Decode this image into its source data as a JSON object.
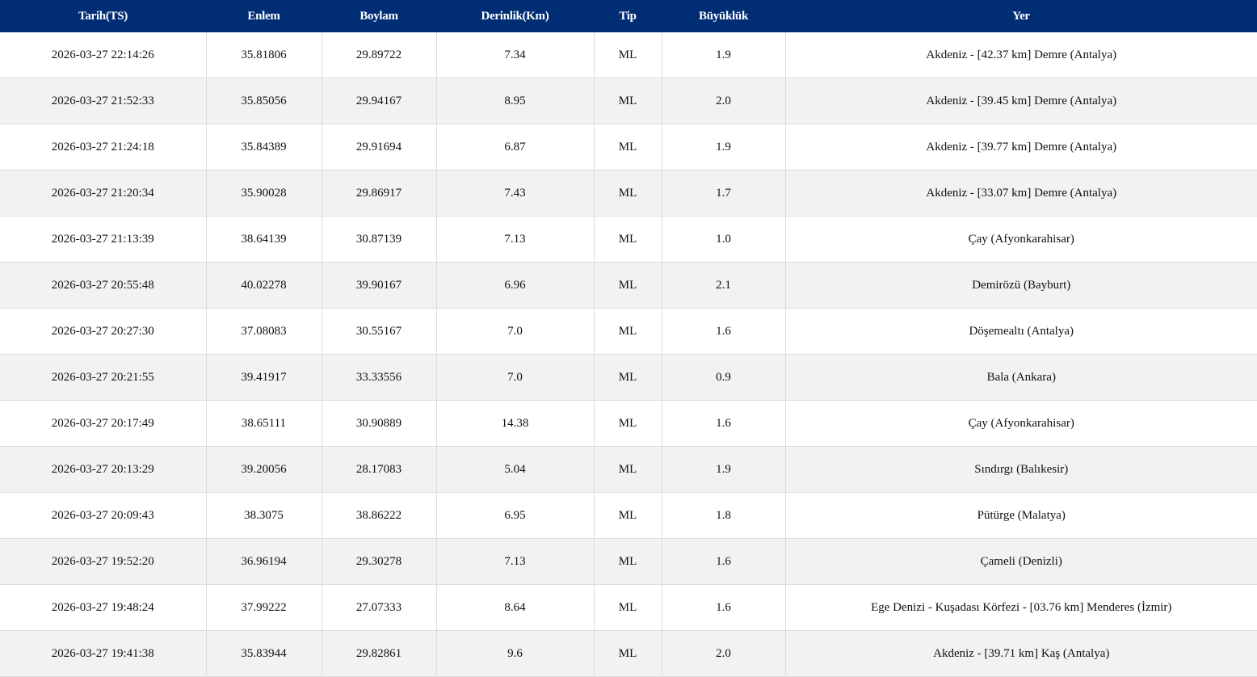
{
  "colors": {
    "header_bg": "#002d74",
    "alt_row": "#f2f2f2"
  },
  "headers": [
    "Tarih(TS)",
    "Enlem",
    "Boylam",
    "Derinlik(Km)",
    "Tip",
    "Büyüklük",
    "Yer"
  ],
  "rows": [
    [
      "2026-03-27 22:14:26",
      "35.81806",
      "29.89722",
      "7.34",
      "ML",
      "1.9",
      "Akdeniz - [42.37 km] Demre (Antalya)"
    ],
    [
      "2026-03-27 21:52:33",
      "35.85056",
      "29.94167",
      "8.95",
      "ML",
      "2.0",
      "Akdeniz - [39.45 km] Demre (Antalya)"
    ],
    [
      "2026-03-27 21:24:18",
      "35.84389",
      "29.91694",
      "6.87",
      "ML",
      "1.9",
      "Akdeniz - [39.77 km] Demre (Antalya)"
    ],
    [
      "2026-03-27 21:20:34",
      "35.90028",
      "29.86917",
      "7.43",
      "ML",
      "1.7",
      "Akdeniz - [33.07 km] Demre (Antalya)"
    ],
    [
      "2026-03-27 21:13:39",
      "38.64139",
      "30.87139",
      "7.13",
      "ML",
      "1.0",
      "Çay (Afyonkarahisar)"
    ],
    [
      "2026-03-27 20:55:48",
      "40.02278",
      "39.90167",
      "6.96",
      "ML",
      "2.1",
      "Demirözü (Bayburt)"
    ],
    [
      "2026-03-27 20:27:30",
      "37.08083",
      "30.55167",
      "7.0",
      "ML",
      "1.6",
      "Döşemealtı (Antalya)"
    ],
    [
      "2026-03-27 20:21:55",
      "39.41917",
      "33.33556",
      "7.0",
      "ML",
      "0.9",
      "Bala (Ankara)"
    ],
    [
      "2026-03-27 20:17:49",
      "38.65111",
      "30.90889",
      "14.38",
      "ML",
      "1.6",
      "Çay (Afyonkarahisar)"
    ],
    [
      "2026-03-27 20:13:29",
      "39.20056",
      "28.17083",
      "5.04",
      "ML",
      "1.9",
      "Sındırgı (Balıkesir)"
    ],
    [
      "2026-03-27 20:09:43",
      "38.3075",
      "38.86222",
      "6.95",
      "ML",
      "1.8",
      "Pütürge (Malatya)"
    ],
    [
      "2026-03-27 19:52:20",
      "36.96194",
      "29.30278",
      "7.13",
      "ML",
      "1.6",
      "Çameli (Denizli)"
    ],
    [
      "2026-03-27 19:48:24",
      "37.99222",
      "27.07333",
      "8.64",
      "ML",
      "1.6",
      "Ege Denizi - Kuşadası Körfezi - [03.76 km] Menderes (İzmir)"
    ],
    [
      "2026-03-27 19:41:38",
      "35.83944",
      "29.82861",
      "9.6",
      "ML",
      "2.0",
      "Akdeniz - [39.71 km] Kaş (Antalya)"
    ]
  ]
}
